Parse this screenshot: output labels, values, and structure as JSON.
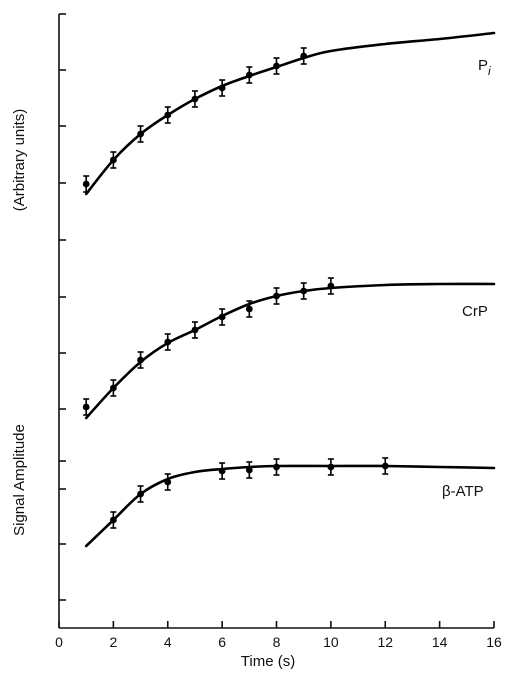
{
  "chart_data": {
    "type": "line",
    "xlabel": "Time (s)",
    "ylabel_top": "(Arbitrary units)",
    "ylabel_bottom": "Signal Amplitude",
    "xlim": [
      0,
      16
    ],
    "x_ticks": [
      0,
      2,
      4,
      6,
      8,
      10,
      12,
      14,
      16
    ],
    "y_axis": "no numeric tick labels; 11 unlabeled major ticks",
    "grid": false,
    "series": [
      {
        "name": "Pi",
        "label_main": "P",
        "label_sub": "i",
        "points": [
          {
            "x": 1,
            "y": 184
          },
          {
            "x": 2,
            "y": 160
          },
          {
            "x": 3,
            "y": 134
          },
          {
            "x": 4,
            "y": 115
          },
          {
            "x": 5,
            "y": 99
          },
          {
            "x": 6,
            "y": 88
          },
          {
            "x": 7,
            "y": 75
          },
          {
            "x": 8,
            "y": 66
          },
          {
            "x": 9,
            "y": 56
          }
        ],
        "curve_x": [
          1,
          2,
          3,
          4,
          5,
          6,
          7,
          8,
          9,
          10,
          12,
          14,
          16
        ],
        "curve_y": [
          194,
          160,
          134,
          115,
          99,
          86,
          76,
          67,
          58,
          51,
          44,
          39,
          33
        ]
      },
      {
        "name": "CrP",
        "label_main": "CrP",
        "points": [
          {
            "x": 1,
            "y": 407
          },
          {
            "x": 2,
            "y": 388
          },
          {
            "x": 3,
            "y": 360
          },
          {
            "x": 4,
            "y": 342
          },
          {
            "x": 5,
            "y": 330
          },
          {
            "x": 6,
            "y": 317
          },
          {
            "x": 7,
            "y": 309
          },
          {
            "x": 8,
            "y": 296
          },
          {
            "x": 9,
            "y": 291
          },
          {
            "x": 10,
            "y": 286
          }
        ],
        "curve_x": [
          1,
          2,
          3,
          4,
          5,
          6,
          7,
          8,
          9,
          10,
          12,
          14,
          16
        ],
        "curve_y": [
          418,
          388,
          362,
          343,
          330,
          316,
          304,
          296,
          291,
          288,
          285,
          284,
          284
        ]
      },
      {
        "name": "β-ATP",
        "label_main": "β-ATP",
        "points": [
          {
            "x": 2,
            "y": 520
          },
          {
            "x": 3,
            "y": 494
          },
          {
            "x": 4,
            "y": 482
          },
          {
            "x": 6,
            "y": 471
          },
          {
            "x": 7,
            "y": 470
          },
          {
            "x": 8,
            "y": 467
          },
          {
            "x": 10,
            "y": 467
          },
          {
            "x": 12,
            "y": 466
          }
        ],
        "curve_x": [
          1,
          2,
          3,
          4,
          5,
          6,
          7,
          8,
          10,
          12,
          14,
          16
        ],
        "curve_y": [
          546,
          520,
          494,
          479,
          472,
          469,
          467,
          466,
          466,
          466,
          467,
          468
        ]
      }
    ]
  }
}
